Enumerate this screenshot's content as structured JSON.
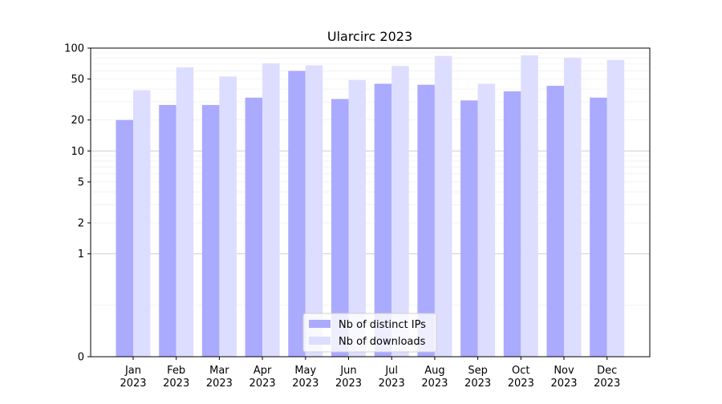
{
  "chart_data": {
    "type": "bar",
    "title": "Ularcirc 2023",
    "xlabel": "",
    "ylabel": "",
    "yscale": "symlog",
    "ylim": [
      0,
      100
    ],
    "yticks": [
      0,
      1,
      2,
      5,
      10,
      20,
      50,
      100
    ],
    "ytick_labels": [
      "0",
      "1",
      "2",
      "5",
      "10",
      "20",
      "50",
      "100"
    ],
    "categories": [
      "Jan\n2023",
      "Feb\n2023",
      "Mar\n2023",
      "Apr\n2023",
      "May\n2023",
      "Jun\n2023",
      "Jul\n2023",
      "Aug\n2023",
      "Sep\n2023",
      "Oct\n2023",
      "Nov\n2023",
      "Dec\n2023"
    ],
    "series": [
      {
        "name": "Nb of distinct IPs",
        "color": "#aaaaff",
        "values": [
          20,
          28,
          28,
          33,
          60,
          32,
          45,
          44,
          31,
          38,
          43,
          33
        ]
      },
      {
        "name": "Nb of downloads",
        "color": "#ddddff",
        "values": [
          39,
          65,
          53,
          71,
          68,
          49,
          67,
          84,
          45,
          85,
          81,
          77
        ]
      }
    ],
    "grid": "horizontal",
    "legend_position": "bottom-center"
  }
}
